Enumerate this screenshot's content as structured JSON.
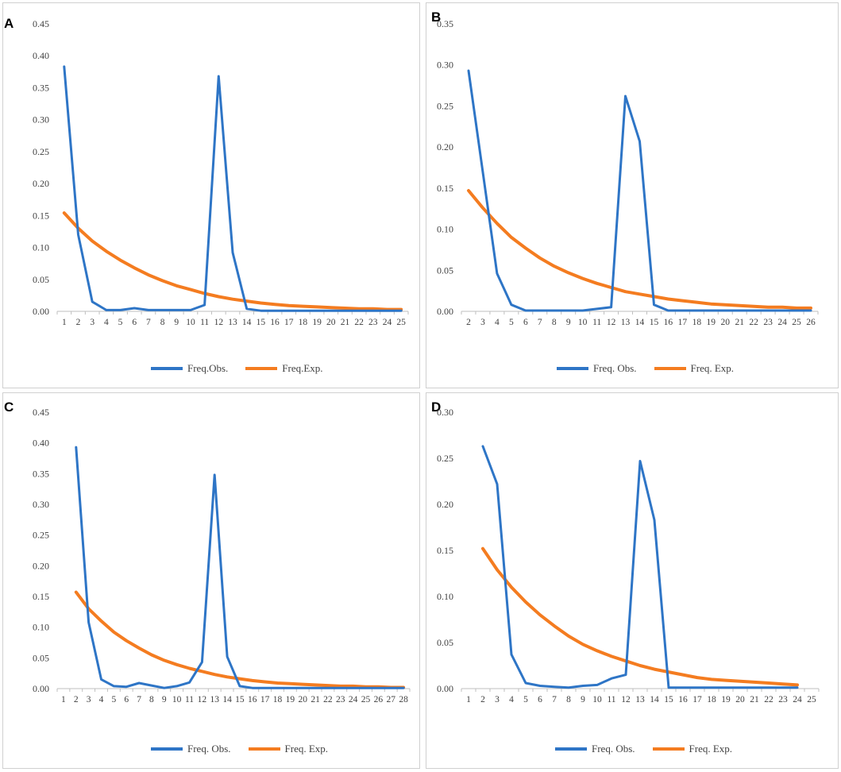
{
  "colors": {
    "observed": "#2e75c6",
    "expected": "#f47c20",
    "axis": "#bfbfbf",
    "text": "#404040"
  },
  "chart_data": [
    {
      "panel": "A",
      "type": "line",
      "x": [
        1,
        2,
        3,
        4,
        5,
        6,
        7,
        8,
        9,
        10,
        11,
        12,
        13,
        14,
        15,
        16,
        17,
        18,
        19,
        20,
        21,
        22,
        23,
        24,
        25
      ],
      "ylim": [
        0,
        0.45
      ],
      "yticks": [
        "0.00",
        "0.05",
        "0.10",
        "0.15",
        "0.20",
        "0.25",
        "0.30",
        "0.35",
        "0.40",
        "0.45"
      ],
      "series": [
        {
          "name": "Freq.Obs.",
          "x": [
            1,
            2,
            3,
            4,
            5,
            6,
            7,
            8,
            9,
            10,
            11,
            12,
            13,
            14,
            15,
            16,
            17,
            18,
            19,
            20,
            21,
            22,
            23,
            24,
            25
          ],
          "values": [
            0.383,
            0.12,
            0.015,
            0.002,
            0.002,
            0.005,
            0.002,
            0.002,
            0.002,
            0.002,
            0.01,
            0.368,
            0.092,
            0.004,
            0.001,
            0.001,
            0.001,
            0.001,
            0.001,
            0.001,
            0.001,
            0.001,
            0.001,
            0.001,
            0.001
          ]
        },
        {
          "name": "Freq.Exp.",
          "x": [
            1,
            2,
            3,
            4,
            5,
            6,
            7,
            8,
            9,
            10,
            11,
            12,
            13,
            14,
            15,
            16,
            17,
            18,
            19,
            20,
            21,
            22,
            23,
            24,
            25
          ],
          "values": [
            0.154,
            0.13,
            0.11,
            0.094,
            0.08,
            0.068,
            0.057,
            0.048,
            0.04,
            0.034,
            0.028,
            0.023,
            0.019,
            0.016,
            0.013,
            0.011,
            0.009,
            0.008,
            0.007,
            0.006,
            0.005,
            0.004,
            0.004,
            0.003,
            0.003
          ]
        }
      ]
    },
    {
      "panel": "B",
      "type": "line",
      "x": [
        2,
        3,
        4,
        5,
        6,
        7,
        8,
        9,
        10,
        11,
        12,
        13,
        14,
        15,
        16,
        17,
        18,
        19,
        20,
        21,
        22,
        23,
        24,
        25,
        26
      ],
      "ylim": [
        0,
        0.35
      ],
      "yticks": [
        "0.00",
        "0.05",
        "0.10",
        "0.15",
        "0.20",
        "0.25",
        "0.30",
        "0.35"
      ],
      "series": [
        {
          "name": "Freq. Obs.",
          "x": [
            2,
            3,
            4,
            5,
            6,
            7,
            8,
            9,
            10,
            11,
            12,
            13,
            14,
            15,
            16,
            17,
            18,
            19,
            20,
            21,
            22,
            23,
            24,
            25,
            26
          ],
          "values": [
            0.293,
            0.17,
            0.046,
            0.008,
            0.001,
            0.001,
            0.001,
            0.001,
            0.001,
            0.003,
            0.005,
            0.262,
            0.207,
            0.008,
            0.001,
            0.001,
            0.001,
            0.001,
            0.001,
            0.001,
            0.001,
            0.001,
            0.001,
            0.001,
            0.001
          ]
        },
        {
          "name": "Freq. Exp.",
          "x": [
            2,
            3,
            4,
            5,
            6,
            7,
            8,
            9,
            10,
            11,
            12,
            13,
            14,
            15,
            16,
            17,
            18,
            19,
            20,
            21,
            22,
            23,
            24,
            25,
            26
          ],
          "values": [
            0.147,
            0.126,
            0.107,
            0.09,
            0.077,
            0.065,
            0.055,
            0.047,
            0.04,
            0.034,
            0.029,
            0.024,
            0.021,
            0.018,
            0.015,
            0.013,
            0.011,
            0.009,
            0.008,
            0.007,
            0.006,
            0.005,
            0.005,
            0.004,
            0.004
          ]
        }
      ]
    },
    {
      "panel": "C",
      "type": "line",
      "x": [
        1,
        2,
        3,
        4,
        5,
        6,
        7,
        8,
        9,
        10,
        11,
        12,
        13,
        14,
        15,
        16,
        17,
        18,
        19,
        20,
        21,
        22,
        23,
        24,
        25,
        26,
        27,
        28
      ],
      "ylim": [
        0,
        0.45
      ],
      "yticks": [
        "0.00",
        "0.05",
        "0.10",
        "0.15",
        "0.20",
        "0.25",
        "0.30",
        "0.35",
        "0.40",
        "0.45"
      ],
      "series": [
        {
          "name": "Freq. Obs.",
          "x": [
            2,
            3,
            4,
            5,
            6,
            7,
            8,
            9,
            10,
            11,
            12,
            13,
            14,
            15,
            16,
            17,
            18,
            19,
            20,
            21,
            22,
            23,
            24,
            25,
            26,
            27,
            28
          ],
          "values": [
            0.393,
            0.108,
            0.015,
            0.004,
            0.003,
            0.009,
            0.005,
            0.001,
            0.004,
            0.01,
            0.043,
            0.348,
            0.052,
            0.004,
            0.001,
            0.001,
            0.001,
            0.001,
            0.001,
            0.001,
            0.001,
            0.001,
            0.001,
            0.001,
            0.001,
            0.001,
            0.001
          ]
        },
        {
          "name": "Freq. Exp.",
          "x": [
            2,
            3,
            4,
            5,
            6,
            7,
            8,
            9,
            10,
            11,
            12,
            13,
            14,
            15,
            16,
            17,
            18,
            19,
            20,
            21,
            22,
            23,
            24,
            25,
            26,
            27,
            28
          ],
          "values": [
            0.157,
            0.13,
            0.11,
            0.092,
            0.078,
            0.066,
            0.055,
            0.046,
            0.039,
            0.033,
            0.028,
            0.023,
            0.019,
            0.016,
            0.013,
            0.011,
            0.009,
            0.008,
            0.007,
            0.006,
            0.005,
            0.004,
            0.004,
            0.003,
            0.003,
            0.002,
            0.002
          ]
        }
      ]
    },
    {
      "panel": "D",
      "type": "line",
      "x": [
        1,
        2,
        3,
        4,
        5,
        6,
        7,
        8,
        9,
        10,
        11,
        12,
        13,
        14,
        15,
        16,
        17,
        18,
        19,
        20,
        21,
        22,
        23,
        24,
        25
      ],
      "ylim": [
        0,
        0.3
      ],
      "yticks": [
        "0.00",
        "0.05",
        "0.10",
        "0.15",
        "0.20",
        "0.25",
        "0.30"
      ],
      "series": [
        {
          "name": "Freq. Obs.",
          "x": [
            2,
            3,
            4,
            5,
            6,
            7,
            8,
            9,
            10,
            11,
            12,
            13,
            14,
            15,
            16,
            17,
            18,
            19,
            20,
            21,
            22,
            23,
            24
          ],
          "values": [
            0.263,
            0.222,
            0.037,
            0.006,
            0.003,
            0.002,
            0.001,
            0.003,
            0.004,
            0.011,
            0.015,
            0.247,
            0.183,
            0.001,
            0.001,
            0.001,
            0.001,
            0.001,
            0.001,
            0.001,
            0.001,
            0.001,
            0.001
          ]
        },
        {
          "name": "Freq. Exp.",
          "x": [
            2,
            3,
            4,
            5,
            6,
            7,
            8,
            9,
            10,
            11,
            12,
            13,
            14,
            15,
            16,
            17,
            18,
            19,
            20,
            21,
            22,
            23,
            24
          ],
          "values": [
            0.152,
            0.129,
            0.11,
            0.094,
            0.08,
            0.068,
            0.057,
            0.048,
            0.041,
            0.035,
            0.03,
            0.025,
            0.021,
            0.018,
            0.015,
            0.012,
            0.01,
            0.009,
            0.008,
            0.007,
            0.006,
            0.005,
            0.004
          ]
        }
      ]
    }
  ]
}
